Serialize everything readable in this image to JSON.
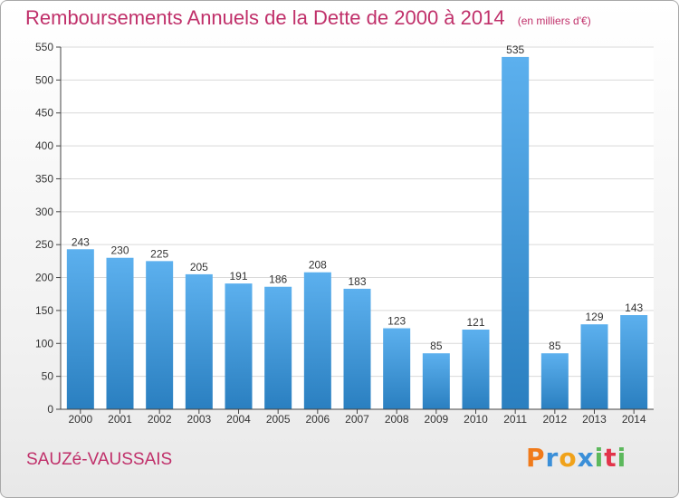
{
  "title": "Remboursements Annuels de la Dette de 2000 à 2014",
  "unit": "(en milliers d'€)",
  "commune": "SAUZé-VAUSSAIS",
  "brand": {
    "letters": [
      "P",
      "r",
      "o",
      "x",
      "i",
      "t",
      "i"
    ],
    "colors": [
      "#f07a1a",
      "#3b8fd8",
      "#f0a21a",
      "#3b8fd8",
      "#5cb85c",
      "#e2344a",
      "#5cb85c"
    ]
  },
  "colors": {
    "bar_top": "#5cb0ee",
    "bar_bottom": "#2a7fc0",
    "title": "#c0306a",
    "grid": "#d9d9d9"
  },
  "chart_data": {
    "type": "bar",
    "categories": [
      "2000",
      "2001",
      "2002",
      "2003",
      "2004",
      "2005",
      "2006",
      "2007",
      "2008",
      "2009",
      "2010",
      "2011",
      "2012",
      "2013",
      "2014"
    ],
    "values": [
      243,
      230,
      225,
      205,
      191,
      186,
      208,
      183,
      123,
      85,
      121,
      535,
      85,
      129,
      143
    ],
    "ylim": [
      0,
      550
    ],
    "yticks": [
      0,
      50,
      100,
      150,
      200,
      250,
      300,
      350,
      400,
      450,
      500,
      550
    ],
    "grid": true
  }
}
